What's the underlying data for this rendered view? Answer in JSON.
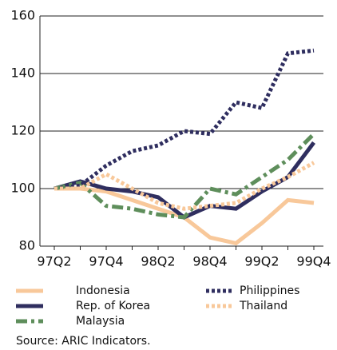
{
  "chart_data": {
    "type": "line",
    "categories": [
      "97Q2",
      null,
      "97Q4",
      null,
      "98Q2",
      null,
      "98Q4",
      null,
      "99Q2",
      null,
      "99Q4"
    ],
    "ylim": [
      80,
      160
    ],
    "yticks": [
      80,
      100,
      120,
      140,
      160
    ],
    "grid": true,
    "series": [
      {
        "name": "Indonesia",
        "color": "#f8c89a",
        "style": "solid",
        "values": [
          100,
          100,
          99,
          96,
          93,
          90,
          83,
          81,
          88,
          96,
          95
        ]
      },
      {
        "name": "Rep. of Korea",
        "color": "#2f2e5f",
        "style": "solid",
        "values": [
          100,
          102.5,
          100,
          99,
          97,
          90,
          94,
          93,
          99,
          104,
          116
        ]
      },
      {
        "name": "Malaysia",
        "color": "#5e8e5b",
        "style": "dashdot",
        "values": [
          100,
          102,
          94,
          93,
          91,
          90,
          100,
          98,
          104,
          110,
          119
        ]
      },
      {
        "name": "Philippines",
        "color": "#2f2e5f",
        "style": "dotted",
        "values": [
          100,
          101,
          108,
          113,
          115,
          120,
          119,
          130,
          128,
          147,
          148
        ]
      },
      {
        "name": "Thailand",
        "color": "#f8c89a",
        "style": "dotted",
        "values": [
          100,
          100,
          105,
          100,
          95,
          93,
          94,
          95,
          100,
          104,
          109
        ]
      }
    ],
    "source": "Source: ARIC Indicators."
  }
}
